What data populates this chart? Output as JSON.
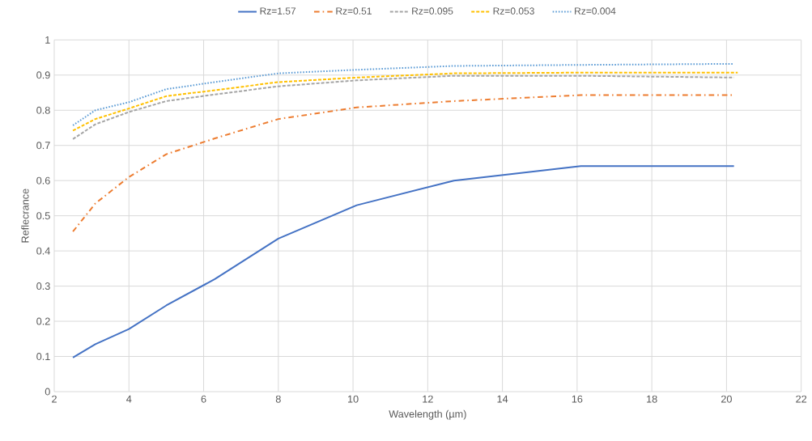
{
  "chart_data": {
    "type": "line",
    "xlabel": "Wavelength (µm)",
    "ylabel": "Reflecrance",
    "x": [
      2.5,
      3.1,
      4,
      5,
      6.3,
      8,
      10.1,
      12.7,
      16.1,
      20.2
    ],
    "series": [
      {
        "name": "Rz=1.57",
        "color": "#4472c4",
        "line_style": "solid",
        "values": [
          0.097,
          0.135,
          0.178,
          0.245,
          0.32,
          0.435,
          0.53,
          0.6,
          0.641,
          0.641
        ]
      },
      {
        "name": "Rz=0.51",
        "color": "#ed7d31",
        "line_style": "dashdot",
        "values": [
          0.455,
          0.535,
          0.61,
          0.675,
          0.72,
          0.775,
          0.808,
          0.826,
          0.843,
          0.843
        ]
      },
      {
        "name": "Rz=0.095",
        "color": "#a5a5a5",
        "line_style": "dashed",
        "values": [
          0.718,
          0.76,
          0.795,
          0.826,
          0.845,
          0.868,
          0.885,
          0.898,
          0.898,
          0.893
        ]
      },
      {
        "name": "Rz=0.053",
        "color": "#ffc000",
        "line_style": "dashed",
        "x": [
          2.5,
          3.1,
          4,
          5,
          6.3,
          8,
          10.1,
          12.7,
          16.1,
          20.3
        ],
        "values": [
          0.742,
          0.775,
          0.805,
          0.84,
          0.857,
          0.88,
          0.893,
          0.905,
          0.907,
          0.907
        ]
      },
      {
        "name": "Rz=0.004",
        "color": "#5b9bd5",
        "line_style": "dotted",
        "values": [
          0.757,
          0.8,
          0.823,
          0.86,
          0.88,
          0.905,
          0.915,
          0.926,
          0.929,
          0.932
        ]
      }
    ],
    "xlim": [
      2,
      22
    ],
    "xticks": [
      2,
      4,
      6,
      8,
      10,
      12,
      14,
      16,
      18,
      20,
      22
    ],
    "ylim": [
      0,
      1
    ],
    "yticks": [
      0,
      0.1,
      0.2,
      0.3,
      0.4,
      0.5,
      0.6,
      0.7,
      0.8,
      0.9,
      1
    ],
    "grid": true,
    "legend": "top",
    "marker": "none"
  }
}
